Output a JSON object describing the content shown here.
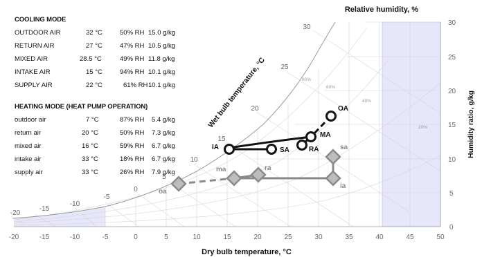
{
  "cooling": {
    "title": "COOLING MODE",
    "rows": [
      {
        "label": "OUTDOOR AIR",
        "temp": "32 °C",
        "rh": "50% RH",
        "w": "15.0 g/kg"
      },
      {
        "label": "RETURN AIR",
        "temp": "27 °C",
        "rh": "47% RH",
        "w": "10.5 g/kg"
      },
      {
        "label": "MIXED AIR",
        "temp": "28.5 °C",
        "rh": "49% RH",
        "w": "11.8 g/kg"
      },
      {
        "label": "INTAKE AIR",
        "temp": "15 °C",
        "rh": "94% RH",
        "w": "10.1 g/kg"
      },
      {
        "label": "SUPPLY AIR",
        "temp": "22 °C",
        "rh": "61% RH",
        "w": "10.1 g/kg"
      }
    ]
  },
  "heating": {
    "title": "HEATING MODE (HEAT PUMP OPERATION)",
    "rows": [
      {
        "label": "outdoor air",
        "temp": "7 °C",
        "rh": "87% RH",
        "w": "5.4 g/kg"
      },
      {
        "label": "return air",
        "temp": "20 °C",
        "rh": "50% RH",
        "w": "7.3 g/kg"
      },
      {
        "label": "mixed air",
        "temp": "16 °C",
        "rh": "59% RH",
        "w": "6.7 g/kg"
      },
      {
        "label": "intake air",
        "temp": "33 °C",
        "rh": "18% RH",
        "w": "6.7 g/kg"
      },
      {
        "label": "supply air",
        "temp": "33 °C",
        "rh": "26% RH",
        "w": "7.9 g/kg"
      }
    ]
  },
  "axes": {
    "x_label": "Dry bulb temperature, °C",
    "y_label": "Humidity ratio, g/kg",
    "wb_label": "Wet bulb temperature, °C",
    "rh_label": "Relative humidity, %",
    "x_ticks": [
      "-20",
      "-15",
      "-10",
      "-5",
      "0",
      "5",
      "10",
      "15",
      "20",
      "25",
      "30",
      "35",
      "40",
      "45",
      "50"
    ],
    "y_ticks": [
      "0",
      "5",
      "10",
      "15",
      "20",
      "25",
      "30"
    ],
    "wb_ticks": [
      "-20",
      "-15",
      "-10",
      "-5",
      "0",
      "5",
      "10",
      "15",
      "20",
      "25",
      "30"
    ],
    "rh_ticks": [
      "80%",
      "60%",
      "40%",
      "20%"
    ]
  },
  "points": {
    "cooling": [
      {
        "key": "OA",
        "label": "OA"
      },
      {
        "key": "MA",
        "label": "MA"
      },
      {
        "key": "RA",
        "label": "RA"
      },
      {
        "key": "IA",
        "label": "IA"
      },
      {
        "key": "SA",
        "label": "SA"
      }
    ],
    "heating": [
      {
        "key": "oa",
        "label": "oa"
      },
      {
        "key": "ma",
        "label": "ma"
      },
      {
        "key": "ra",
        "label": "ra"
      },
      {
        "key": "sa",
        "label": "sa"
      },
      {
        "key": "ia",
        "label": "ia"
      }
    ]
  },
  "colors": {
    "cooling": "#111111",
    "heating": "#8a8a8a",
    "shade": "#e6e6fa",
    "grid": "#cfcfcf"
  }
}
